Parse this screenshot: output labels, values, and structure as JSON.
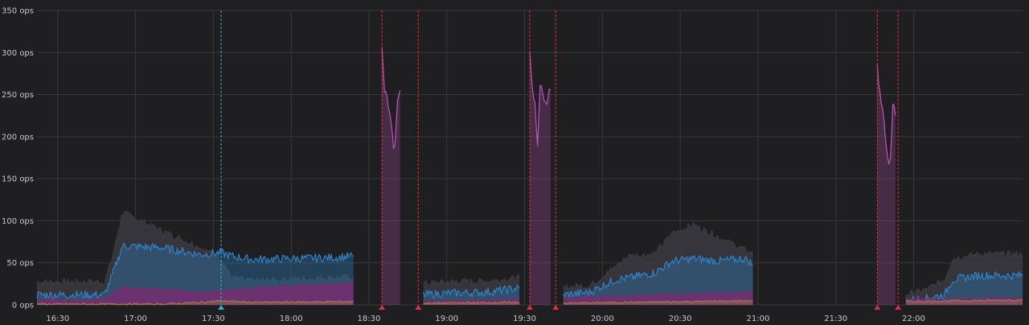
{
  "chart_data": {
    "type": "area",
    "title": "",
    "xlabel": "",
    "ylabel": "",
    "y_unit": "ops",
    "ylim": [
      0,
      350
    ],
    "xlim": [
      "16:22",
      "22:42"
    ],
    "y_ticks": [
      {
        "value": 0,
        "label": "0 ops"
      },
      {
        "value": 50,
        "label": "50 ops"
      },
      {
        "value": 100,
        "label": "100 ops"
      },
      {
        "value": 150,
        "label": "150 ops"
      },
      {
        "value": 200,
        "label": "200 ops"
      },
      {
        "value": 250,
        "label": "250 ops"
      },
      {
        "value": 300,
        "label": "300 ops"
      },
      {
        "value": 350,
        "label": "350 ops"
      }
    ],
    "x_ticks": [
      {
        "value": "16:30",
        "label": "16:30"
      },
      {
        "value": "17:00",
        "label": "17:00"
      },
      {
        "value": "17:30",
        "label": "17:30"
      },
      {
        "value": "18:00",
        "label": "18:00"
      },
      {
        "value": "18:30",
        "label": "18:30"
      },
      {
        "value": "19:00",
        "label": "19:00"
      },
      {
        "value": "19:30",
        "label": "19:30"
      },
      {
        "value": "20:00",
        "label": "20:00"
      },
      {
        "value": "20:30",
        "label": "20:30"
      },
      {
        "value": "21:00",
        "label": "21:00"
      },
      {
        "value": "21:30",
        "label": "21:30"
      },
      {
        "value": "22:00",
        "label": "22:00"
      }
    ],
    "grid": true,
    "legend": "none",
    "annotations": [
      {
        "time": "17:33",
        "type": "info",
        "color": "#31b0d5"
      },
      {
        "time": "18:35",
        "type": "alert",
        "color": "#e02f44"
      },
      {
        "time": "18:49",
        "type": "alert",
        "color": "#e02f44"
      },
      {
        "time": "19:32",
        "type": "alert",
        "color": "#e02f44"
      },
      {
        "time": "19:42",
        "type": "alert",
        "color": "#e02f44"
      },
      {
        "time": "21:46",
        "type": "alert",
        "color": "#e02f44"
      },
      {
        "time": "21:54",
        "type": "alert",
        "color": "#e02f44"
      }
    ],
    "series": [
      {
        "key": "total",
        "color": "#3a3a40",
        "points": [
          [
            "16:22",
            27
          ],
          [
            "16:48",
            27
          ],
          [
            "16:51",
            55
          ],
          [
            "16:55",
            110
          ],
          [
            "17:10",
            88
          ],
          [
            "17:25",
            68
          ],
          [
            "17:33",
            55
          ],
          [
            "17:37",
            32
          ],
          [
            "17:45",
            28
          ],
          [
            "18:00",
            30
          ],
          [
            "18:15",
            32
          ],
          [
            "18:24",
            33
          ],
          [
            "18:24",
            null
          ],
          [
            "18:49",
            null
          ],
          [
            "18:51",
            25
          ],
          [
            "19:00",
            27
          ],
          [
            "19:15",
            28
          ],
          [
            "19:28",
            32
          ],
          [
            "19:28",
            null
          ],
          [
            "19:43",
            null
          ],
          [
            "19:45",
            20
          ],
          [
            "19:50",
            22
          ],
          [
            "19:55",
            22
          ],
          [
            "20:05",
            45
          ],
          [
            "20:10",
            58
          ],
          [
            "20:20",
            60
          ],
          [
            "20:27",
            85
          ],
          [
            "20:35",
            95
          ],
          [
            "20:45",
            80
          ],
          [
            "20:55",
            65
          ],
          [
            "20:58",
            60
          ],
          [
            "20:58",
            null
          ],
          [
            "21:55",
            null
          ],
          [
            "21:57",
            12
          ],
          [
            "22:05",
            18
          ],
          [
            "22:12",
            30
          ],
          [
            "22:15",
            55
          ],
          [
            "22:25",
            60
          ],
          [
            "22:42",
            60
          ]
        ]
      },
      {
        "key": "blue",
        "color": "#2f82c6",
        "points": [
          [
            "16:22",
            12
          ],
          [
            "16:48",
            12
          ],
          [
            "16:51",
            35
          ],
          [
            "16:55",
            70
          ],
          [
            "17:10",
            68
          ],
          [
            "17:25",
            60
          ],
          [
            "17:33",
            62
          ],
          [
            "17:37",
            58
          ],
          [
            "17:45",
            54
          ],
          [
            "18:00",
            55
          ],
          [
            "18:15",
            56
          ],
          [
            "18:24",
            58
          ],
          [
            "18:24",
            null
          ],
          [
            "18:49",
            null
          ],
          [
            "18:51",
            12
          ],
          [
            "19:00",
            14
          ],
          [
            "19:15",
            15
          ],
          [
            "19:28",
            20
          ],
          [
            "19:28",
            null
          ],
          [
            "19:43",
            null
          ],
          [
            "19:45",
            12
          ],
          [
            "19:55",
            15
          ],
          [
            "20:05",
            30
          ],
          [
            "20:10",
            32
          ],
          [
            "20:20",
            38
          ],
          [
            "20:27",
            52
          ],
          [
            "20:35",
            55
          ],
          [
            "20:45",
            52
          ],
          [
            "20:55",
            55
          ],
          [
            "20:58",
            48
          ],
          [
            "20:58",
            null
          ],
          [
            "21:55",
            null
          ],
          [
            "21:57",
            5
          ],
          [
            "22:05",
            8
          ],
          [
            "22:12",
            12
          ],
          [
            "22:15",
            30
          ],
          [
            "22:25",
            35
          ],
          [
            "22:42",
            35
          ]
        ]
      },
      {
        "key": "purple",
        "color": "#7a2a70",
        "points": [
          [
            "16:22",
            6
          ],
          [
            "16:48",
            6
          ],
          [
            "16:51",
            15
          ],
          [
            "16:55",
            20
          ],
          [
            "17:10",
            18
          ],
          [
            "17:25",
            15
          ],
          [
            "17:33",
            16
          ],
          [
            "17:45",
            20
          ],
          [
            "18:00",
            22
          ],
          [
            "18:15",
            24
          ],
          [
            "18:24",
            25
          ],
          [
            "18:24",
            null
          ],
          [
            "18:49",
            null
          ],
          [
            "18:51",
            4
          ],
          [
            "19:00",
            5
          ],
          [
            "19:15",
            5
          ],
          [
            "19:28",
            6
          ],
          [
            "19:28",
            null
          ],
          [
            "19:43",
            null
          ],
          [
            "19:45",
            8
          ],
          [
            "20:05",
            10
          ],
          [
            "20:27",
            12
          ],
          [
            "20:45",
            14
          ],
          [
            "20:58",
            15
          ],
          [
            "20:58",
            null
          ],
          [
            "21:55",
            null
          ],
          [
            "21:57",
            6
          ],
          [
            "22:15",
            7
          ],
          [
            "22:42",
            8
          ]
        ]
      },
      {
        "key": "peak",
        "color": "#c052b8",
        "points": [
          [
            "18:35",
            310
          ],
          [
            "18:36",
            260
          ],
          [
            "18:37",
            245
          ],
          [
            "18:38",
            230
          ],
          [
            "18:39",
            200
          ],
          [
            "18:40",
            185
          ],
          [
            "18:41",
            250
          ],
          [
            "18:42",
            255
          ],
          [
            "18:42",
            null
          ],
          [
            "19:32",
            295
          ],
          [
            "19:33",
            255
          ],
          [
            "19:34",
            240
          ],
          [
            "19:35",
            185
          ],
          [
            "19:36",
            258
          ],
          [
            "19:37",
            255
          ],
          [
            "19:38",
            240
          ],
          [
            "19:39",
            250
          ],
          [
            "19:40",
            255
          ],
          [
            "19:40",
            null
          ],
          [
            "21:46",
            285
          ],
          [
            "21:47",
            250
          ],
          [
            "21:48",
            235
          ],
          [
            "21:49",
            200
          ],
          [
            "21:50",
            175
          ],
          [
            "21:51",
            170
          ],
          [
            "21:52",
            245
          ],
          [
            "21:53",
            225
          ],
          [
            "21:53",
            null
          ]
        ]
      },
      {
        "key": "tan",
        "color": "#a0784a",
        "points": [
          [
            "16:22",
            1
          ],
          [
            "17:10",
            1
          ],
          [
            "17:25",
            3
          ],
          [
            "17:33",
            5
          ],
          [
            "17:45",
            3
          ],
          [
            "18:24",
            4
          ],
          [
            "18:24",
            null
          ],
          [
            "18:49",
            null
          ],
          [
            "18:51",
            2
          ],
          [
            "19:28",
            3
          ],
          [
            "19:28",
            null
          ],
          [
            "19:43",
            null
          ],
          [
            "19:45",
            2
          ],
          [
            "20:58",
            5
          ],
          [
            "20:58",
            null
          ],
          [
            "21:55",
            null
          ],
          [
            "21:57",
            4
          ],
          [
            "22:42",
            6
          ]
        ]
      }
    ]
  }
}
